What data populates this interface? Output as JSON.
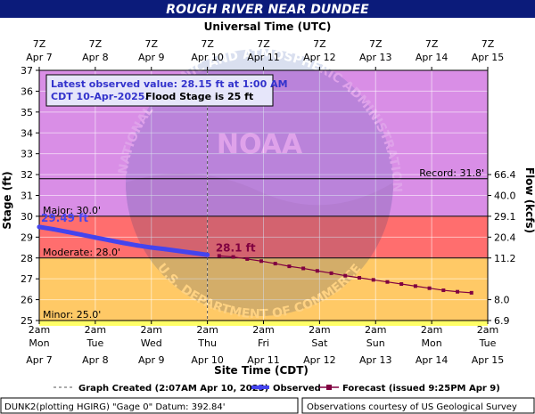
{
  "chart_data": {
    "type": "line",
    "title": "ROUGH RIVER NEAR DUNDEE",
    "top_axis_label": "Universal Time (UTC)",
    "bottom_axis_label": "Site Time (CDT)",
    "ylabel_left": "Stage (ft)",
    "ylabel_right": "Flow (kcfs)",
    "ylim": [
      25,
      37
    ],
    "x_days": 8,
    "y_ticks": [
      25,
      26,
      27,
      28,
      29,
      30,
      31,
      32,
      33,
      34,
      35,
      36,
      37
    ],
    "flow_ticks": [
      {
        "stage": 25,
        "label": "6.9"
      },
      {
        "stage": 26,
        "label": "8.0"
      },
      {
        "stage": 28,
        "label": "11.2"
      },
      {
        "stage": 29,
        "label": "20.4"
      },
      {
        "stage": 30,
        "label": "29.1"
      },
      {
        "stage": 31,
        "label": "40.0"
      },
      {
        "stage": 32,
        "label": "66.4"
      }
    ],
    "bottom_ticks": [
      {
        "time": "2am",
        "day": "Mon",
        "date": "Apr 7"
      },
      {
        "time": "2am",
        "day": "Tue",
        "date": "Apr 8"
      },
      {
        "time": "2am",
        "day": "Wed",
        "date": "Apr 9"
      },
      {
        "time": "2am",
        "day": "Thu",
        "date": "Apr 10"
      },
      {
        "time": "2am",
        "day": "Fri",
        "date": "Apr 11"
      },
      {
        "time": "2am",
        "day": "Sat",
        "date": "Apr 12"
      },
      {
        "time": "2am",
        "day": "Sun",
        "date": "Apr 13"
      },
      {
        "time": "2am",
        "day": "Mon",
        "date": "Apr 14"
      },
      {
        "time": "2am",
        "day": "Tue",
        "date": "Apr 15"
      }
    ],
    "top_ticks": [
      {
        "time": "7Z",
        "date": "Apr 7"
      },
      {
        "time": "7Z",
        "date": "Apr 8"
      },
      {
        "time": "7Z",
        "date": "Apr 9"
      },
      {
        "time": "7Z",
        "date": "Apr 10"
      },
      {
        "time": "7Z",
        "date": "Apr 11"
      },
      {
        "time": "7Z",
        "date": "Apr 12"
      },
      {
        "time": "7Z",
        "date": "Apr 13"
      },
      {
        "time": "7Z",
        "date": "Apr 14"
      },
      {
        "time": "7Z",
        "date": "Apr 15"
      }
    ],
    "bands": [
      {
        "name": "Minor",
        "from": 25,
        "to": 28,
        "color": "#ffc966"
      },
      {
        "name": "Moderate",
        "from": 28,
        "to": 30,
        "color": "#ff6e6e"
      },
      {
        "name": "Major",
        "from": 30,
        "to": 37,
        "color": "#d98ee6"
      },
      {
        "name": "Action",
        "from": 24.5,
        "to": 25,
        "color": "#ffff66"
      }
    ],
    "thresholds": [
      {
        "label": "Minor: 25.0'",
        "stage": 25.0
      },
      {
        "label": "Moderate: 28.0'",
        "stage": 28.0
      },
      {
        "label": "Major: 30.0'",
        "stage": 30.0
      }
    ],
    "record": {
      "label": "Record: 31.8'",
      "stage": 31.8
    },
    "created_day": 3.0,
    "observed": {
      "name": "Observed",
      "color": "#4444ee",
      "x_days": [
        0,
        0.25,
        0.5,
        0.75,
        1,
        1.25,
        1.5,
        1.75,
        2,
        2.25,
        2.5,
        2.75,
        3
      ],
      "values": [
        29.49,
        29.38,
        29.25,
        29.12,
        28.98,
        28.85,
        28.72,
        28.6,
        28.5,
        28.42,
        28.33,
        28.24,
        28.15
      ]
    },
    "forecast": {
      "name": "Forecast (issued 9:25PM Apr 9)",
      "color": "#800040",
      "x_days": [
        3.21,
        3.46,
        3.71,
        3.96,
        4.21,
        4.46,
        4.71,
        4.96,
        5.21,
        5.46,
        5.71,
        5.96,
        6.21,
        6.46,
        6.71,
        6.96,
        7.21,
        7.46,
        7.71
      ],
      "values": [
        28.1,
        28.05,
        27.95,
        27.85,
        27.73,
        27.6,
        27.5,
        27.38,
        27.27,
        27.15,
        27.05,
        26.95,
        26.85,
        26.75,
        26.65,
        26.55,
        26.45,
        26.38,
        26.33
      ]
    },
    "obs_start_label": "29.49 ft",
    "fcst_start_label": "28.1 ft",
    "info_box": {
      "line1": "Latest observed value: 28.15 ft at 1:00 AM",
      "line2a": "CDT 10-Apr-2025.",
      "line2b": "Flood Stage is 25 ft"
    },
    "legend": {
      "created": "Graph Created (2:07AM Apr 10, 2025)",
      "observed": "Observed",
      "forecast": "Forecast (issued 9:25PM Apr 9)"
    },
    "footer_left": "DUNK2(plotting HGIRG) \"Gage 0\" Datum: 392.84'",
    "footer_right": "Observations courtesy of US Geological Survey",
    "watermark_text": "NATIONAL OCEANIC AND ATMOSPHERIC ADMINISTRATION",
    "watermark_bottom": "U.S. DEPARTMENT OF COMMERCE",
    "watermark_logo": "NOAA"
  }
}
